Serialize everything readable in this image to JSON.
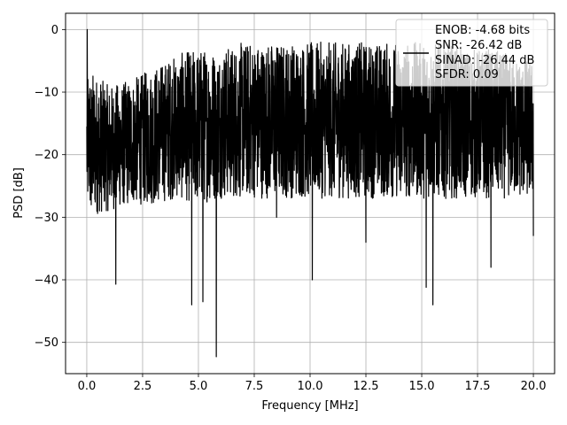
{
  "chart_data": {
    "type": "line",
    "title": "",
    "xlabel": "Frequency [MHz]",
    "ylabel": "PSD [dB]",
    "xlim": [
      -0.95,
      20.95
    ],
    "ylim": [
      -55,
      2.6
    ],
    "xticks": [
      0.0,
      2.5,
      5.0,
      7.5,
      10.0,
      12.5,
      15.0,
      17.5,
      20.0
    ],
    "xtick_labels": [
      "0.0",
      "2.5",
      "5.0",
      "7.5",
      "10.0",
      "12.5",
      "15.0",
      "17.5",
      "20.0"
    ],
    "yticks": [
      0,
      -10,
      -20,
      -30,
      -40,
      -50
    ],
    "ytick_labels": [
      "0",
      "−10",
      "−20",
      "−30",
      "−40",
      "−50"
    ],
    "grid": true,
    "legend": {
      "placement": "top-right",
      "entries": [
        "ENOB: -4.68 bits",
        "SNR: -26.42 dB",
        "SINAD: -26.44 dB",
        "SFDR: 0.09"
      ]
    },
    "series": [
      {
        "color": "#000000",
        "description_points": [
          [
            0.0,
            -15.5
          ],
          [
            0.02,
            0.0
          ],
          [
            0.05,
            -8.0
          ],
          [
            0.1,
            -20.0
          ],
          [
            0.2,
            -28.0
          ],
          [
            0.4,
            -22.0
          ],
          [
            0.6,
            -26.0
          ],
          [
            1.0,
            -24.0
          ],
          [
            1.3,
            -40.7
          ],
          [
            1.6,
            -25.0
          ],
          [
            2.0,
            -26.0
          ],
          [
            3.0,
            -23.0
          ],
          [
            4.0,
            -23.0
          ],
          [
            4.7,
            -44.0
          ],
          [
            5.0,
            -21.0
          ],
          [
            5.2,
            -43.5
          ],
          [
            5.8,
            -52.3
          ],
          [
            6.0,
            -20.0
          ],
          [
            7.0,
            -22.0
          ],
          [
            8.0,
            -22.0
          ],
          [
            8.5,
            -30.0
          ],
          [
            10.1,
            -40.0
          ],
          [
            11.0,
            -23.0
          ],
          [
            12.0,
            -22.0
          ],
          [
            12.5,
            -34.0
          ],
          [
            14.0,
            -24.0
          ],
          [
            15.2,
            -41.2
          ],
          [
            15.5,
            -44.0
          ],
          [
            16.0,
            -25.0
          ],
          [
            17.0,
            -24.0
          ],
          [
            18.1,
            -38.0
          ],
          [
            19.0,
            -24.0
          ],
          [
            20.0,
            -33.0
          ]
        ],
        "envelope": {
          "x": [
            0,
            1,
            2,
            3,
            4,
            5,
            6,
            7,
            8,
            9,
            10,
            11,
            12,
            13,
            14,
            15,
            16,
            17,
            18,
            19,
            20
          ],
          "upper": [
            -6,
            -9,
            -8,
            -6,
            -4,
            -3,
            -3,
            -2,
            -2,
            -2,
            -2,
            -2,
            -2,
            -2,
            -2,
            -2,
            -2,
            -3,
            -3,
            -4,
            -5
          ],
          "lower": [
            -30,
            -29,
            -28,
            -28,
            -27,
            -28,
            -27,
            -27,
            -27,
            -27,
            -27,
            -27,
            -27,
            -27,
            -27,
            -27,
            -27,
            -27,
            -27,
            -27,
            -27
          ]
        }
      }
    ]
  }
}
